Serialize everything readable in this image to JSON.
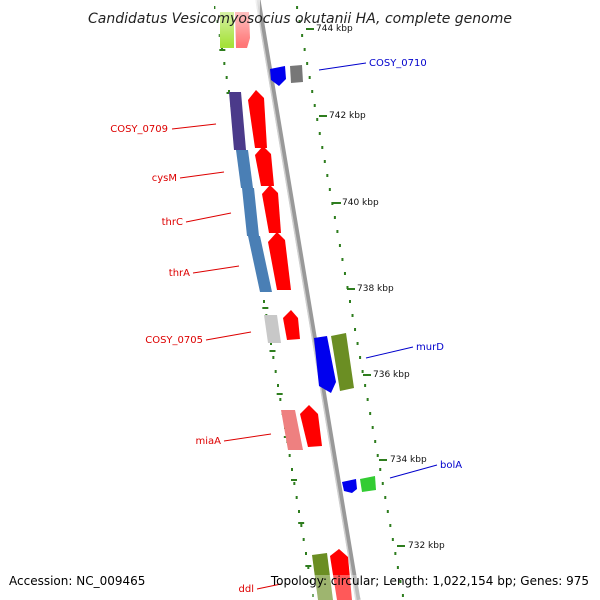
{
  "title": "Candidatus Vesicomyosocius okutanii HA, complete genome",
  "footer": {
    "accession": "Accession: NC_009465",
    "summary": "Topology: circular; Length: 1,022,154 bp; Genes: 975"
  },
  "colors": {
    "reverse_label": "#dd0000",
    "forward_label": "#0000cc",
    "tick": "#2e7d1e",
    "backbone": "#888888",
    "cds_reverse": "#ff0000",
    "cds_forward": "#0000ee"
  },
  "ticks": [
    "744 kbp",
    "742 kbp",
    "740 kbp",
    "738 kbp",
    "736 kbp",
    "734 kbp",
    "732 kbp"
  ],
  "labels_left": [
    "COSY_0709",
    "cysM",
    "thrC",
    "thrA",
    "COSY_0705",
    "miaA",
    "ddl"
  ],
  "labels_right": [
    "COSY_0710",
    "murD",
    "bolA"
  ]
}
